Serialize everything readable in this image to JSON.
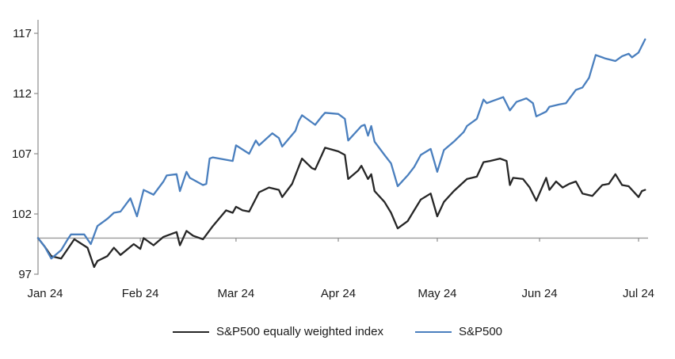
{
  "chart_data": {
    "type": "line",
    "title": "",
    "x_axis": {
      "unit": "day_of_year_2024",
      "tick_doy": [
        1,
        32,
        61,
        92,
        122,
        153,
        183
      ],
      "labels": [
        "Jan 24",
        "Feb 24",
        "Mar 24",
        "Apr 24",
        "May 24",
        "Jun 24",
        "Jul 24"
      ]
    },
    "y_axis": {
      "ticks": [
        97,
        102,
        107,
        112,
        117
      ],
      "min": 97,
      "max": 117,
      "baseline_value": 100
    },
    "layout": {
      "grid": false,
      "legend_position": "bottom",
      "baseline_color": "#9a9a9a",
      "axis_color": "#8c8c8c",
      "label_color": "#1a1a1a"
    },
    "series": [
      {
        "name": "S&P500 equally weighted index",
        "color": "#262626",
        "points": [
          [
            1,
            100.0
          ],
          [
            3,
            99.3
          ],
          [
            5,
            98.5
          ],
          [
            8,
            98.3
          ],
          [
            10,
            99.1
          ],
          [
            12,
            99.9
          ],
          [
            16,
            99.2
          ],
          [
            18,
            97.6
          ],
          [
            19,
            98.1
          ],
          [
            22,
            98.5
          ],
          [
            24,
            99.2
          ],
          [
            26,
            98.6
          ],
          [
            30,
            99.5
          ],
          [
            32,
            99.1
          ],
          [
            33,
            100.0
          ],
          [
            36,
            99.4
          ],
          [
            39,
            100.1
          ],
          [
            43,
            100.5
          ],
          [
            44,
            99.4
          ],
          [
            46,
            100.6
          ],
          [
            48,
            100.2
          ],
          [
            51,
            99.9
          ],
          [
            54,
            101.0
          ],
          [
            58,
            102.3
          ],
          [
            60,
            102.1
          ],
          [
            61,
            102.6
          ],
          [
            63,
            102.3
          ],
          [
            65,
            102.2
          ],
          [
            68,
            103.8
          ],
          [
            71,
            104.2
          ],
          [
            74,
            104.0
          ],
          [
            75,
            103.4
          ],
          [
            78,
            104.5
          ],
          [
            80,
            105.9
          ],
          [
            81,
            106.6
          ],
          [
            84,
            105.8
          ],
          [
            85,
            105.7
          ],
          [
            87,
            106.9
          ],
          [
            88,
            107.5
          ],
          [
            92,
            107.2
          ],
          [
            94,
            106.9
          ],
          [
            95,
            104.9
          ],
          [
            98,
            105.6
          ],
          [
            99,
            106.0
          ],
          [
            101,
            104.9
          ],
          [
            102,
            105.3
          ],
          [
            103,
            103.9
          ],
          [
            106,
            103.0
          ],
          [
            108,
            102.1
          ],
          [
            110,
            100.8
          ],
          [
            113,
            101.4
          ],
          [
            115,
            102.3
          ],
          [
            117,
            103.2
          ],
          [
            120,
            103.7
          ],
          [
            122,
            101.8
          ],
          [
            124,
            103.0
          ],
          [
            127,
            103.9
          ],
          [
            129,
            104.4
          ],
          [
            131,
            104.9
          ],
          [
            134,
            105.1
          ],
          [
            136,
            106.3
          ],
          [
            138,
            106.4
          ],
          [
            141,
            106.6
          ],
          [
            143,
            106.4
          ],
          [
            144,
            104.4
          ],
          [
            145,
            105.0
          ],
          [
            148,
            104.9
          ],
          [
            150,
            104.2
          ],
          [
            152,
            103.1
          ],
          [
            155,
            105.0
          ],
          [
            156,
            104.0
          ],
          [
            158,
            104.7
          ],
          [
            160,
            104.2
          ],
          [
            162,
            104.5
          ],
          [
            164,
            104.7
          ],
          [
            166,
            103.7
          ],
          [
            169,
            103.5
          ],
          [
            172,
            104.4
          ],
          [
            174,
            104.5
          ],
          [
            176,
            105.3
          ],
          [
            178,
            104.4
          ],
          [
            180,
            104.3
          ],
          [
            183,
            103.4
          ],
          [
            184,
            103.9
          ],
          [
            185,
            104.0
          ]
        ]
      },
      {
        "name": "S&P500",
        "color": "#4a7fbe",
        "points": [
          [
            1,
            100.0
          ],
          [
            3,
            99.3
          ],
          [
            5,
            98.3
          ],
          [
            8,
            99.0
          ],
          [
            10,
            99.9
          ],
          [
            11,
            100.3
          ],
          [
            15,
            100.3
          ],
          [
            17,
            99.5
          ],
          [
            19,
            101.0
          ],
          [
            22,
            101.6
          ],
          [
            24,
            102.1
          ],
          [
            26,
            102.2
          ],
          [
            29,
            103.3
          ],
          [
            31,
            101.8
          ],
          [
            32,
            102.9
          ],
          [
            33,
            104.0
          ],
          [
            36,
            103.6
          ],
          [
            39,
            104.7
          ],
          [
            40,
            105.2
          ],
          [
            43,
            105.3
          ],
          [
            44,
            103.9
          ],
          [
            46,
            105.5
          ],
          [
            47,
            105.0
          ],
          [
            51,
            104.4
          ],
          [
            52,
            104.5
          ],
          [
            53,
            106.6
          ],
          [
            54,
            106.7
          ],
          [
            58,
            106.5
          ],
          [
            60,
            106.4
          ],
          [
            61,
            107.7
          ],
          [
            65,
            107.0
          ],
          [
            67,
            108.1
          ],
          [
            68,
            107.7
          ],
          [
            72,
            108.7
          ],
          [
            74,
            108.3
          ],
          [
            75,
            107.6
          ],
          [
            79,
            108.9
          ],
          [
            80,
            109.7
          ],
          [
            81,
            110.2
          ],
          [
            85,
            109.4
          ],
          [
            87,
            110.1
          ],
          [
            88,
            110.4
          ],
          [
            92,
            110.3
          ],
          [
            94,
            109.9
          ],
          [
            95,
            108.1
          ],
          [
            99,
            109.3
          ],
          [
            100,
            109.4
          ],
          [
            101,
            108.5
          ],
          [
            102,
            109.3
          ],
          [
            103,
            108.0
          ],
          [
            106,
            106.9
          ],
          [
            108,
            106.2
          ],
          [
            110,
            104.3
          ],
          [
            113,
            105.2
          ],
          [
            115,
            105.9
          ],
          [
            117,
            106.9
          ],
          [
            120,
            107.4
          ],
          [
            122,
            105.5
          ],
          [
            124,
            107.3
          ],
          [
            127,
            108.0
          ],
          [
            130,
            108.8
          ],
          [
            131,
            109.3
          ],
          [
            134,
            109.9
          ],
          [
            136,
            111.5
          ],
          [
            137,
            111.2
          ],
          [
            139,
            111.4
          ],
          [
            142,
            111.7
          ],
          [
            144,
            110.6
          ],
          [
            146,
            111.3
          ],
          [
            149,
            111.6
          ],
          [
            151,
            111.2
          ],
          [
            152,
            110.1
          ],
          [
            155,
            110.5
          ],
          [
            156,
            110.9
          ],
          [
            159,
            111.1
          ],
          [
            161,
            111.2
          ],
          [
            164,
            112.3
          ],
          [
            166,
            112.5
          ],
          [
            168,
            113.3
          ],
          [
            170,
            115.2
          ],
          [
            173,
            114.9
          ],
          [
            176,
            114.7
          ],
          [
            178,
            115.1
          ],
          [
            180,
            115.3
          ],
          [
            181,
            115.0
          ],
          [
            183,
            115.4
          ],
          [
            185,
            116.5
          ]
        ]
      }
    ]
  }
}
